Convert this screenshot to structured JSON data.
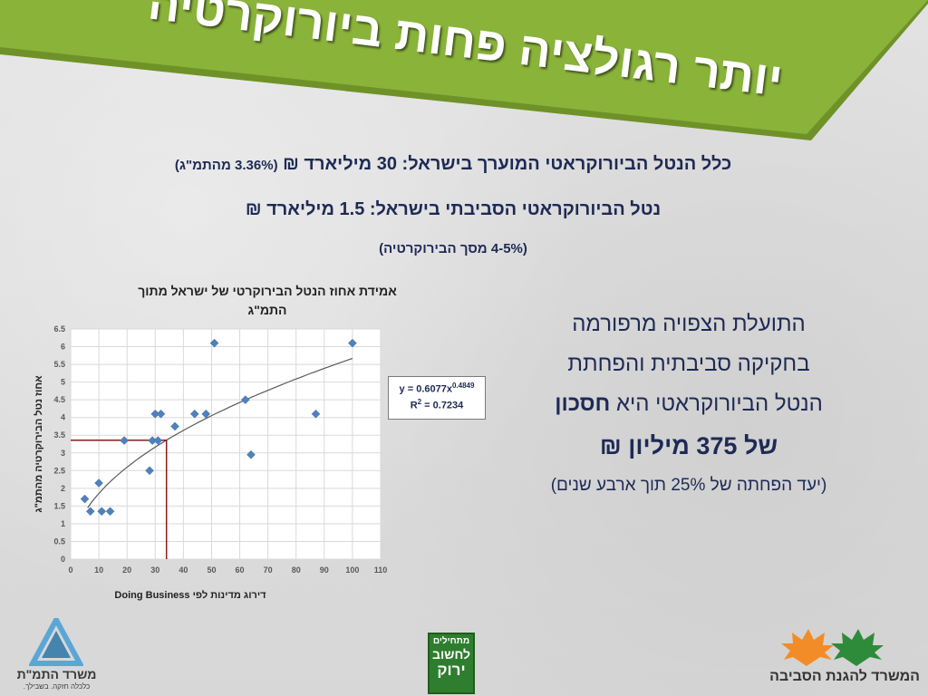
{
  "slide": {
    "title": "יותר רגולציה פחות ביורוקרטיה",
    "line1_main": "כלל הנטל הביורוקראטי המוערך בישראל: 30 מיליארד ₪",
    "line1_paren": "(3.36% מהתמ\"ג)",
    "line2": "נטל הביורוקראטי הסביבתי בישראל: 1.5 מיליארד ₪",
    "line3": "(4-5% מסך הבירוקרטיה)",
    "benefit": {
      "line1": "התועלת הצפויה מרפורמה",
      "line2": "בחקיקה סביבתית והפחתת",
      "line3_prefix": "הנטל  הביורוקראטי היא ",
      "line3_bold": "חסכון",
      "line4": "של 375 מיליון ₪",
      "note": "(יעד הפחתה של 25% תוך ארבע שנים)"
    }
  },
  "colors": {
    "banner_green": "#8ab33a",
    "banner_dark": "#6e9228",
    "text_navy": "#1e2a55",
    "marker_blue": "#4f81bd",
    "ref_line_red": "#8b1a1a"
  },
  "chart_data": {
    "type": "scatter",
    "title_line1": "אמידת אחוז הנטל הבירוקרטי של ישראל מתוך",
    "title_line2": "התמ\"ג",
    "xlabel": "דירוג מדינות לפי Doing Business",
    "ylabel": "אחוז נטל הבירוקרטיה מהתמ\"ג",
    "xlim": [
      0,
      110
    ],
    "ylim": [
      0,
      6.5
    ],
    "x_ticks": [
      0,
      10,
      20,
      30,
      40,
      50,
      60,
      70,
      80,
      90,
      100,
      110
    ],
    "y_ticks": [
      "0",
      "0.5",
      "1",
      "1.5",
      "2",
      "2.5",
      "3",
      "3.5",
      "4",
      "4.5",
      "5",
      "5.5",
      "6",
      "6.5"
    ],
    "grid": true,
    "points": [
      {
        "x": 5,
        "y": 1.7
      },
      {
        "x": 7,
        "y": 1.35
      },
      {
        "x": 10,
        "y": 2.15
      },
      {
        "x": 11,
        "y": 1.35
      },
      {
        "x": 14,
        "y": 1.35
      },
      {
        "x": 19,
        "y": 3.35
      },
      {
        "x": 28,
        "y": 2.5
      },
      {
        "x": 29,
        "y": 3.35
      },
      {
        "x": 30,
        "y": 4.1
      },
      {
        "x": 31,
        "y": 3.35
      },
      {
        "x": 32,
        "y": 4.1
      },
      {
        "x": 37,
        "y": 3.75
      },
      {
        "x": 44,
        "y": 4.1
      },
      {
        "x": 48,
        "y": 4.1
      },
      {
        "x": 51,
        "y": 6.1
      },
      {
        "x": 62,
        "y": 4.5
      },
      {
        "x": 64,
        "y": 2.95
      },
      {
        "x": 87,
        "y": 4.1
      },
      {
        "x": 100,
        "y": 6.1
      }
    ],
    "trendline": {
      "type": "power",
      "coefficient": 0.6077,
      "exponent": 0.4849,
      "x_start": 6,
      "x_end": 100,
      "equation_label": "y = 0.6077x",
      "exponent_label": "0.4849",
      "r2_label": "R",
      "r2_sup": "2",
      "r2_value": " = 0.7234"
    },
    "reference": {
      "x": 34,
      "y": 3.36
    }
  },
  "logos": {
    "left_org": "משרד התמ\"ת",
    "left_tagline": "כלכלה חזקה. בשבילך.",
    "center_line1": "מתחילים",
    "center_line2": "לחשוב",
    "center_line3": "ירוק",
    "right_org": "המשרד להגנת הסביבה"
  }
}
